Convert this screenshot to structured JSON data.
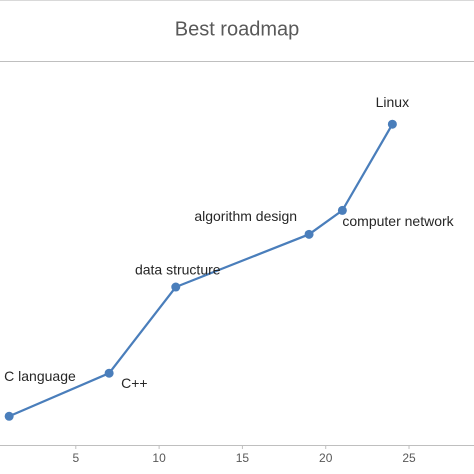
{
  "chart_data": {
    "type": "line",
    "title": "Best roadmap",
    "x": [
      1,
      7,
      11,
      19,
      21,
      24
    ],
    "labels": [
      "C language",
      "C++",
      "data structure",
      "algorithm design",
      "computer network",
      "Linux"
    ],
    "series": [
      {
        "color": "#4a7ebb",
        "values": [
          3,
          7.5,
          16.5,
          22,
          24.5,
          33.5
        ]
      }
    ],
    "xlim": [
      0.45,
      28.9
    ],
    "xticks": [
      5,
      10,
      15,
      20,
      25
    ],
    "ylim": [
      0,
      40
    ]
  }
}
